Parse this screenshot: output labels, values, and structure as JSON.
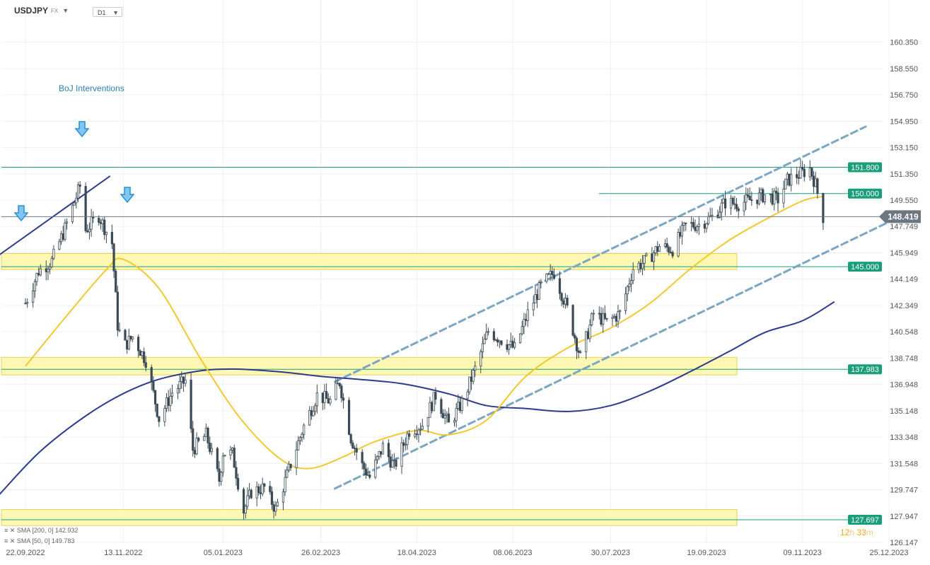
{
  "header": {
    "symbol": "USDJPY",
    "market": "FX",
    "timeframe": "D1"
  },
  "annotation": "BoJ Interventions",
  "sma_legend": [
    {
      "label": "SMA [200, 0] 142.932",
      "color": "#2d3a8c"
    },
    {
      "label": "SMA [50, 0] 149.783",
      "color": "#f2c832"
    }
  ],
  "timer": {
    "hours": "12",
    "h_unit": "h",
    "minutes": "33",
    "m_unit": "m"
  },
  "icons": [
    "down-arrow-icon",
    "caret-down-icon",
    "close-icon",
    "settings-icon"
  ],
  "colors": {
    "candle": "#3b4a55",
    "sma200": "#2d3a8c",
    "sma50": "#f2c832",
    "level": "#1a9e7a",
    "zone": "#fff7a8",
    "channel": "#7aa6c2",
    "current": "#6d7780"
  },
  "chart_data": {
    "type": "candlestick",
    "ylim": [
      126.147,
      161.3
    ],
    "y_ticks": [
      "160.350",
      "158.550",
      "156.750",
      "154.950",
      "153.150",
      "151.350",
      "149.550",
      "147.749",
      "145.949",
      "144.149",
      "142.349",
      "140.548",
      "138.748",
      "136.948",
      "135.148",
      "133.348",
      "131.548",
      "129.747",
      "127.947",
      "126.147"
    ],
    "x_ticks": [
      "22.09.2022",
      "13.11.2022",
      "05.01.2023",
      "26.02.2023",
      "18.04.2023",
      "08.06.2023",
      "30.07.2023",
      "19.09.2023",
      "09.11.2023",
      "25.12.2023"
    ],
    "current_price": "148.419",
    "levels": [
      {
        "label": "151.800",
        "value": 151.8
      },
      {
        "label": "150.000",
        "value": 150.0
      },
      {
        "label": "145.000",
        "value": 145.0
      },
      {
        "label": "137.983",
        "value": 137.983
      },
      {
        "label": "127.697",
        "value": 127.697
      }
    ],
    "zones": [
      [
        144.8,
        145.9
      ],
      [
        137.6,
        138.8
      ],
      [
        127.3,
        128.4
      ]
    ],
    "interventions": [
      "22.09.2022",
      "21.10.2022",
      "24.10.2022"
    ],
    "price_path": [
      [
        "22.09.2022",
        142.5
      ],
      [
        "29.09.2022",
        144.7
      ],
      [
        "06.10.2022",
        145.4
      ],
      [
        "13.10.2022",
        147.6
      ],
      [
        "21.10.2022",
        150.5
      ],
      [
        "24.10.2022",
        147.5
      ],
      [
        "31.10.2022",
        148.5
      ],
      [
        "07.11.2022",
        146.6
      ],
      [
        "10.11.2022",
        141.0
      ],
      [
        "13.11.2022",
        139.5
      ],
      [
        "18.11.2022",
        140.2
      ],
      [
        "25.11.2022",
        138.6
      ],
      [
        "02.12.2022",
        134.6
      ],
      [
        "09.12.2022",
        136.4
      ],
      [
        "16.12.2022",
        137.2
      ],
      [
        "20.12.2022",
        132.5
      ],
      [
        "27.12.2022",
        133.5
      ],
      [
        "03.01.2023",
        130.4
      ],
      [
        "05.01.2023",
        132.3
      ],
      [
        "10.01.2023",
        132.2
      ],
      [
        "16.01.2023",
        128.3
      ],
      [
        "20.01.2023",
        129.6
      ],
      [
        "27.01.2023",
        129.9
      ],
      [
        "02.02.2023",
        128.4
      ],
      [
        "10.02.2023",
        131.5
      ],
      [
        "17.02.2023",
        134.1
      ],
      [
        "24.02.2023",
        136.2
      ],
      [
        "03.03.2023",
        135.8
      ],
      [
        "08.03.2023",
        137.1
      ],
      [
        "14.03.2023",
        133.3
      ],
      [
        "20.03.2023",
        131.4
      ],
      [
        "24.03.2023",
        130.6
      ],
      [
        "31.03.2023",
        132.7
      ],
      [
        "06.04.2023",
        131.3
      ],
      [
        "14.04.2023",
        133.8
      ],
      [
        "21.04.2023",
        134.2
      ],
      [
        "28.04.2023",
        136.2
      ],
      [
        "05.05.2023",
        134.2
      ],
      [
        "12.05.2023",
        135.7
      ],
      [
        "19.05.2023",
        138.0
      ],
      [
        "26.05.2023",
        140.6
      ],
      [
        "02.06.2023",
        140.0
      ],
      [
        "09.06.2023",
        139.4
      ],
      [
        "16.06.2023",
        141.8
      ],
      [
        "23.06.2023",
        143.7
      ],
      [
        "30.06.2023",
        144.6
      ],
      [
        "07.07.2023",
        142.1
      ],
      [
        "14.07.2023",
        138.8
      ],
      [
        "21.07.2023",
        141.8
      ],
      [
        "28.07.2023",
        141.2
      ],
      [
        "04.08.2023",
        141.8
      ],
      [
        "11.08.2023",
        144.9
      ],
      [
        "18.08.2023",
        145.4
      ],
      [
        "25.08.2023",
        146.4
      ],
      [
        "01.09.2023",
        146.2
      ],
      [
        "08.09.2023",
        147.8
      ],
      [
        "15.09.2023",
        147.9
      ],
      [
        "22.09.2023",
        148.4
      ],
      [
        "29.09.2023",
        149.4
      ],
      [
        "06.10.2023",
        149.3
      ],
      [
        "13.10.2023",
        149.6
      ],
      [
        "20.10.2023",
        149.9
      ],
      [
        "27.10.2023",
        149.6
      ],
      [
        "01.11.2023",
        150.9
      ],
      [
        "10.11.2023",
        151.5
      ],
      [
        "13.11.2023",
        151.7
      ],
      [
        "16.11.2023",
        150.6
      ],
      [
        "20.11.2023",
        148.4
      ]
    ],
    "sma50_path": [
      [
        "22.09.2022",
        138.2
      ],
      [
        "13.10.2022",
        141.5
      ],
      [
        "04.11.2022",
        144.8
      ],
      [
        "13.11.2022",
        145.5
      ],
      [
        "02.12.2022",
        143.5
      ],
      [
        "25.12.2022",
        138.5
      ],
      [
        "15.01.2023",
        134.5
      ],
      [
        "05.02.2023",
        131.8
      ],
      [
        "20.02.2023",
        131.2
      ],
      [
        "10.03.2023",
        132.0
      ],
      [
        "26.03.2023",
        133.0
      ],
      [
        "18.04.2023",
        133.8
      ],
      [
        "05.05.2023",
        133.5
      ],
      [
        "25.05.2023",
        134.5
      ],
      [
        "15.06.2023",
        137.5
      ],
      [
        "08.07.2023",
        139.5
      ],
      [
        "30.07.2023",
        140.8
      ],
      [
        "20.08.2023",
        142.5
      ],
      [
        "10.09.2023",
        144.8
      ],
      [
        "01.10.2023",
        146.8
      ],
      [
        "20.10.2023",
        148.2
      ],
      [
        "09.11.2023",
        149.5
      ],
      [
        "20.11.2023",
        149.8
      ]
    ],
    "sma200_path": [
      [
        "08.09.2022",
        129.4
      ],
      [
        "01.10.2022",
        132.5
      ],
      [
        "30.10.2022",
        135.3
      ],
      [
        "25.11.2022",
        137.0
      ],
      [
        "20.12.2022",
        137.8
      ],
      [
        "10.01.2023",
        138.0
      ],
      [
        "05.02.2023",
        137.8
      ],
      [
        "26.02.2023",
        137.5
      ],
      [
        "18.03.2023",
        137.3
      ],
      [
        "10.04.2023",
        137.0
      ],
      [
        "05.05.2023",
        136.3
      ],
      [
        "25.05.2023",
        135.5
      ],
      [
        "15.06.2023",
        135.3
      ],
      [
        "08.07.2023",
        135.1
      ],
      [
        "30.07.2023",
        135.5
      ],
      [
        "20.08.2023",
        136.5
      ],
      [
        "10.09.2023",
        137.8
      ],
      [
        "01.10.2023",
        139.2
      ],
      [
        "20.10.2023",
        140.5
      ],
      [
        "09.11.2023",
        141.3
      ],
      [
        "26.11.2023",
        142.6
      ]
    ],
    "channel": {
      "upper": [
        [
          "05.03.2023",
          137.1
        ],
        [
          "13.12.2023",
          154.6
        ]
      ],
      "lower": [
        [
          "05.03.2023",
          129.8
        ],
        [
          "24.12.2023",
          148.0
        ]
      ]
    },
    "trendline": [
      [
        "08.09.2022",
        145.8
      ],
      [
        "06.11.2022",
        151.2
      ]
    ]
  }
}
